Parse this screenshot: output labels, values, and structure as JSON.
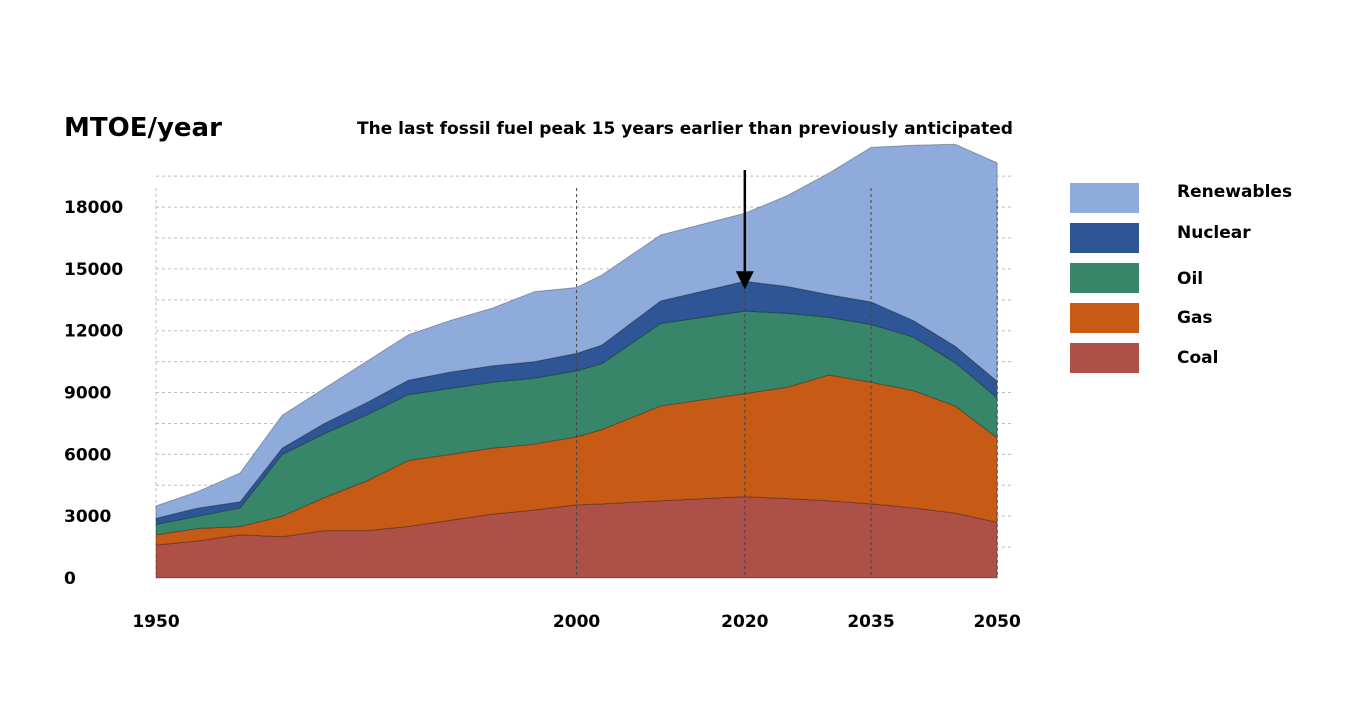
{
  "chart_data": {
    "type": "area",
    "stacked": true,
    "title": "The last fossil fuel peak 15  years earlier than previously anticipated",
    "ylabel": "MTOE/year",
    "xlabel": "",
    "x": [
      1950,
      1955,
      1960,
      1965,
      1970,
      1975,
      1980,
      1985,
      1990,
      1995,
      2000,
      2003,
      2010,
      2020,
      2025,
      2030,
      2035,
      2040,
      2045,
      2050
    ],
    "x_ticks": [
      "1950",
      "2000",
      "2020",
      "2035",
      "2050"
    ],
    "x_tick_values": [
      1950,
      2000,
      2020,
      2035,
      2050
    ],
    "y_ticks": [
      "0",
      "3000",
      "6000",
      "9000",
      "12000",
      "15000",
      "18000"
    ],
    "y_tick_values": [
      0,
      3000,
      6000,
      9000,
      12000,
      15000,
      18000
    ],
    "ylim": [
      0,
      19800
    ],
    "xlim": [
      1950,
      2052
    ],
    "grid": true,
    "legend_position": "right",
    "series": [
      {
        "name": "Coal",
        "color": "#ac5048",
        "values": [
          1600,
          1800,
          2100,
          2000,
          2300,
          2300,
          2500,
          2800,
          3100,
          3300,
          3550,
          3600,
          3750,
          3950,
          3850,
          3750,
          3600,
          3400,
          3150,
          2700
        ]
      },
      {
        "name": "Gas",
        "color": "#c75a14",
        "values": [
          500,
          600,
          400,
          1000,
          1600,
          2400,
          3200,
          3200,
          3200,
          3200,
          3300,
          3600,
          4600,
          5000,
          5400,
          6100,
          5900,
          5700,
          5200,
          4100
        ]
      },
      {
        "name": "Oil",
        "color": "#38866a",
        "values": [
          500,
          600,
          900,
          3000,
          3100,
          3200,
          3200,
          3200,
          3200,
          3200,
          3200,
          3200,
          4000,
          4000,
          3600,
          2800,
          2800,
          2600,
          2100,
          1950
        ]
      },
      {
        "name": "Nuclear",
        "color": "#2e5696",
        "values": [
          300,
          400,
          300,
          300,
          500,
          600,
          700,
          800,
          800,
          800,
          850,
          900,
          1100,
          1450,
          1300,
          1100,
          1100,
          800,
          800,
          800
        ]
      },
      {
        "name": "Renewables",
        "color": "#8eabdc",
        "values": [
          600,
          800,
          1400,
          1600,
          1700,
          2000,
          2200,
          2500,
          2800,
          3400,
          3200,
          3400,
          3200,
          3300,
          4400,
          5900,
          7500,
          8500,
          9800,
          10600
        ]
      }
    ],
    "annotation": {
      "type": "arrow",
      "x": 2020,
      "y": 14400
    }
  }
}
